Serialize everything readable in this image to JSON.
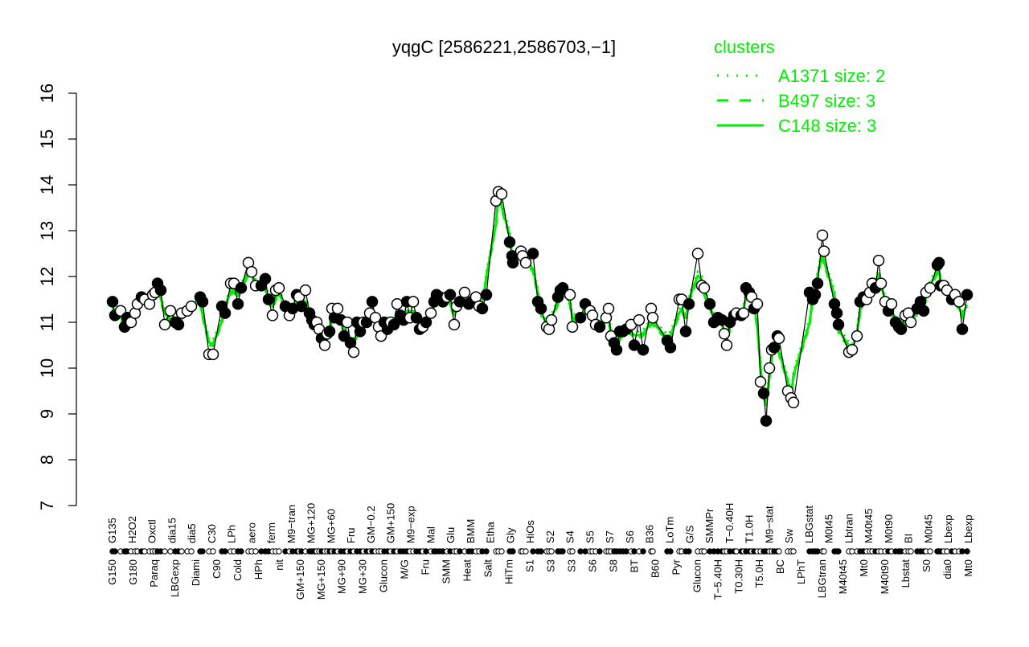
{
  "chart_data": {
    "type": "line",
    "title": "yqgC [2586221,2586703,−1]",
    "xlabel": "",
    "ylabel": "",
    "ylim": [
      7,
      16
    ],
    "yticks": [
      7,
      8,
      9,
      10,
      11,
      12,
      13,
      14,
      15,
      16
    ],
    "grid": false,
    "legend": {
      "title": "clusters",
      "position": "top-right",
      "color": "#00ee00",
      "entries": [
        {
          "label": "A1371 size: 2",
          "style": "dotted"
        },
        {
          "label": "B497 size: 3",
          "style": "dashed"
        },
        {
          "label": "C148 size: 3",
          "style": "solid"
        }
      ]
    },
    "x_labels_top": [
      "G135",
      "H2O2",
      "Oxctl",
      "dia15",
      "dia5",
      "C30",
      "LPh",
      "aero",
      "ferm",
      "M9−tran",
      "MG+120",
      "MG+60",
      "Fru",
      "GM−0.2",
      "GM+150",
      "M9−exp",
      "Mal",
      "Glu",
      "BMM",
      "Etha",
      "Gly",
      "HiOs",
      "S2",
      "S4",
      "S5",
      "S7",
      "S6",
      "B36",
      "LoTm",
      "G/S",
      "SMMPr",
      "T−0.40H",
      "T1.0H",
      "M9−stat",
      "Sw",
      "LBGstat",
      "M0t45",
      "Lbtran",
      "M40t45",
      "M0t90",
      "BI",
      "M0t45",
      "Lbexp",
      "Lbexp"
    ],
    "x_labels_bottom": [
      "G150",
      "G180",
      "Paraq",
      "LBGexp",
      "Diami",
      "C90",
      "Cold",
      "HPh",
      "nit",
      "GM+150",
      "MG+150",
      "MG+90",
      "MG+30",
      "Glucon",
      "M/G",
      "Fru",
      "SMM",
      "Heat",
      "Salt",
      "HiTm",
      "S1",
      "S3",
      "S3",
      "S6",
      "S8",
      "BT",
      "B60",
      "Pyr",
      "Glucon",
      "T−5.40H",
      "T0.30H",
      "T5.0H",
      "BC",
      "LPhT",
      "LBGtran",
      "M40t45",
      "Mt0",
      "M40t90",
      "Lbstat",
      "S0",
      "dia0",
      "Mt0"
    ],
    "series": [
      {
        "name": "samples",
        "style": "points+black-line",
        "points": [
          [
            140,
            11.45,
            1
          ],
          [
            143,
            11.15,
            1
          ],
          [
            150,
            11.25,
            0
          ],
          [
            155,
            10.9,
            1
          ],
          [
            158,
            11.1,
            1
          ],
          [
            163,
            11.0,
            0
          ],
          [
            168,
            11.2,
            0
          ],
          [
            171,
            11.4,
            0
          ],
          [
            176,
            11.55,
            1
          ],
          [
            180,
            11.5,
            0
          ],
          [
            186,
            11.4,
            0
          ],
          [
            190,
            11.6,
            0
          ],
          [
            193,
            11.65,
            0
          ],
          [
            196,
            11.85,
            1
          ],
          [
            200,
            11.7,
            1
          ],
          [
            205,
            10.95,
            0
          ],
          [
            212,
            11.25,
            0
          ],
          [
            218,
            11.0,
            1
          ],
          [
            222,
            10.95,
            1
          ],
          [
            226,
            11.2,
            0
          ],
          [
            233,
            11.25,
            0
          ],
          [
            238,
            11.35,
            0
          ],
          [
            249,
            11.55,
            1
          ],
          [
            252,
            11.45,
            1
          ],
          [
            260,
            10.3,
            0
          ],
          [
            265,
            10.3,
            0
          ],
          [
            276,
            11.35,
            1
          ],
          [
            280,
            11.2,
            1
          ],
          [
            287,
            11.85,
            0
          ],
          [
            291,
            11.85,
            0
          ],
          [
            296,
            11.4,
            1
          ],
          [
            300,
            11.75,
            1
          ],
          [
            309,
            12.3,
            0
          ],
          [
            313,
            12.1,
            0
          ],
          [
            318,
            11.8,
            0
          ],
          [
            325,
            11.8,
            1
          ],
          [
            330,
            11.95,
            1
          ],
          [
            334,
            11.5,
            1
          ],
          [
            339,
            11.15,
            0
          ],
          [
            343,
            11.7,
            0
          ],
          [
            347,
            11.75,
            0
          ],
          [
            355,
            11.35,
            1
          ],
          [
            360,
            11.15,
            0
          ],
          [
            364,
            11.3,
            1
          ],
          [
            369,
            11.6,
            1
          ],
          [
            372,
            11.55,
            0
          ],
          [
            375,
            11.35,
            1
          ],
          [
            380,
            11.7,
            0
          ],
          [
            385,
            11.2,
            1
          ],
          [
            388,
            11.05,
            1
          ],
          [
            391,
            10.95,
            1
          ],
          [
            394,
            11.0,
            0
          ],
          [
            397,
            10.85,
            0
          ],
          [
            400,
            10.65,
            1
          ],
          [
            404,
            10.5,
            0
          ],
          [
            407,
            10.75,
            0
          ],
          [
            410,
            10.8,
            1
          ],
          [
            413,
            11.3,
            0
          ],
          [
            416,
            11.1,
            1
          ],
          [
            420,
            11.3,
            0
          ],
          [
            424,
            11.05,
            1
          ],
          [
            428,
            10.7,
            1
          ],
          [
            432,
            11.0,
            0
          ],
          [
            436,
            10.55,
            1
          ],
          [
            440,
            10.35,
            0
          ],
          [
            444,
            11.0,
            1
          ],
          [
            448,
            10.8,
            1
          ],
          [
            452,
            11.0,
            0
          ],
          [
            456,
            11.0,
            1
          ],
          [
            460,
            11.2,
            0
          ],
          [
            463,
            11.45,
            1
          ],
          [
            467,
            11.1,
            0
          ],
          [
            471,
            10.9,
            0
          ],
          [
            474,
            10.7,
            0
          ],
          [
            478,
            11.0,
            1
          ],
          [
            482,
            10.85,
            1
          ],
          [
            486,
            11.0,
            0
          ],
          [
            490,
            10.95,
            1
          ],
          [
            494,
            11.4,
            0
          ],
          [
            498,
            11.15,
            1
          ],
          [
            502,
            11.05,
            1
          ],
          [
            506,
            11.45,
            1
          ],
          [
            510,
            11.1,
            0
          ],
          [
            514,
            11.45,
            0
          ],
          [
            518,
            11.1,
            1
          ],
          [
            522,
            10.85,
            1
          ],
          [
            526,
            10.9,
            0
          ],
          [
            530,
            11.0,
            1
          ],
          [
            536,
            11.2,
            0
          ],
          [
            540,
            11.45,
            1
          ],
          [
            543,
            11.6,
            1
          ],
          [
            547,
            11.55,
            1
          ],
          [
            551,
            11.45,
            1
          ],
          [
            556,
            11.55,
            0
          ],
          [
            560,
            11.6,
            1
          ],
          [
            565,
            10.95,
            0
          ],
          [
            568,
            11.35,
            0
          ],
          [
            572,
            11.45,
            1
          ],
          [
            578,
            11.65,
            0
          ],
          [
            583,
            11.4,
            1
          ],
          [
            587,
            11.45,
            1
          ],
          [
            592,
            11.55,
            0
          ],
          [
            596,
            11.35,
            0
          ],
          [
            600,
            11.3,
            1
          ],
          [
            605,
            11.6,
            1
          ],
          [
            617,
            13.65,
            0
          ],
          [
            620,
            13.85,
            0
          ],
          [
            624,
            13.8,
            0
          ],
          [
            634,
            12.75,
            1
          ],
          [
            637,
            12.45,
            1
          ],
          [
            638,
            12.3,
            1
          ],
          [
            648,
            12.55,
            0
          ],
          [
            650,
            12.45,
            0
          ],
          [
            654,
            12.3,
            0
          ],
          [
            663,
            12.5,
            1
          ],
          [
            669,
            11.45,
            1
          ],
          [
            673,
            11.3,
            1
          ],
          [
            680,
            10.9,
            0
          ],
          [
            683,
            10.85,
            0
          ],
          [
            686,
            11.05,
            0
          ],
          [
            694,
            11.55,
            1
          ],
          [
            697,
            11.7,
            1
          ],
          [
            700,
            11.75,
            1
          ],
          [
            709,
            11.6,
            0
          ],
          [
            712,
            10.9,
            0
          ],
          [
            722,
            11.1,
            1
          ],
          [
            728,
            11.4,
            1
          ],
          [
            734,
            11.25,
            0
          ],
          [
            737,
            11.15,
            0
          ],
          [
            741,
            10.95,
            0
          ],
          [
            746,
            10.9,
            1
          ],
          [
            754,
            11.1,
            0
          ],
          [
            757,
            11.3,
            0
          ],
          [
            760,
            10.7,
            0
          ],
          [
            764,
            10.55,
            1
          ],
          [
            767,
            10.4,
            1
          ],
          [
            771,
            10.8,
            1
          ],
          [
            775,
            10.8,
            1
          ],
          [
            779,
            10.85,
            1
          ],
          [
            785,
            10.95,
            0
          ],
          [
            789,
            10.5,
            1
          ],
          [
            795,
            11.05,
            0
          ],
          [
            800,
            10.4,
            1
          ],
          [
            810,
            11.3,
            0
          ],
          [
            812,
            11.1,
            0
          ],
          [
            830,
            10.6,
            1
          ],
          [
            834,
            10.45,
            1
          ],
          [
            845,
            11.5,
            0
          ],
          [
            848,
            11.5,
            0
          ],
          [
            853,
            10.8,
            1
          ],
          [
            857,
            11.4,
            1
          ],
          [
            868,
            12.5,
            0
          ],
          [
            873,
            11.8,
            0
          ],
          [
            876,
            11.75,
            0
          ],
          [
            883,
            11.4,
            1
          ],
          [
            888,
            11.0,
            1
          ],
          [
            893,
            11.1,
            1
          ],
          [
            898,
            11.05,
            1
          ],
          [
            901,
            10.75,
            0
          ],
          [
            904,
            10.5,
            0
          ],
          [
            908,
            11.0,
            1
          ],
          [
            913,
            11.15,
            1
          ],
          [
            916,
            11.2,
            0
          ],
          [
            922,
            11.15,
            1
          ],
          [
            925,
            11.2,
            0
          ],
          [
            928,
            11.75,
            1
          ],
          [
            932,
            11.65,
            1
          ],
          [
            935,
            11.55,
            0
          ],
          [
            938,
            11.3,
            1
          ],
          [
            942,
            11.4,
            0
          ],
          [
            946,
            9.7,
            0
          ],
          [
            950,
            9.45,
            1
          ],
          [
            953,
            8.85,
            1
          ],
          [
            957,
            10.0,
            0
          ],
          [
            960,
            10.4,
            0
          ],
          [
            963,
            10.45,
            1
          ],
          [
            967,
            10.7,
            1
          ],
          [
            969,
            10.65,
            0
          ],
          [
            980,
            9.5,
            0
          ],
          [
            984,
            9.35,
            0
          ],
          [
            987,
            9.25,
            0
          ],
          [
            1007,
            11.65,
            1
          ],
          [
            1011,
            11.5,
            1
          ],
          [
            1014,
            11.6,
            1
          ],
          [
            1017,
            11.85,
            1
          ],
          [
            1023,
            12.9,
            0
          ],
          [
            1025,
            12.55,
            0
          ],
          [
            1038,
            11.4,
            1
          ],
          [
            1041,
            11.2,
            1
          ],
          [
            1043,
            10.95,
            1
          ],
          [
            1056,
            10.35,
            0
          ],
          [
            1060,
            10.4,
            0
          ],
          [
            1066,
            10.7,
            0
          ],
          [
            1070,
            11.45,
            1
          ],
          [
            1074,
            11.55,
            1
          ],
          [
            1078,
            11.5,
            0
          ],
          [
            1082,
            11.65,
            0
          ],
          [
            1085,
            11.85,
            0
          ],
          [
            1089,
            11.75,
            1
          ],
          [
            1093,
            12.35,
            0
          ],
          [
            1096,
            11.85,
            0
          ],
          [
            1101,
            11.45,
            0
          ],
          [
            1105,
            11.25,
            1
          ],
          [
            1109,
            11.4,
            0
          ],
          [
            1114,
            11.0,
            1
          ],
          [
            1118,
            10.9,
            1
          ],
          [
            1121,
            10.85,
            1
          ],
          [
            1126,
            11.15,
            0
          ],
          [
            1130,
            11.2,
            0
          ],
          [
            1133,
            11.0,
            0
          ],
          [
            1141,
            11.3,
            1
          ],
          [
            1145,
            11.45,
            1
          ],
          [
            1149,
            11.25,
            1
          ],
          [
            1152,
            11.65,
            0
          ],
          [
            1157,
            11.75,
            0
          ],
          [
            1166,
            12.25,
            1
          ],
          [
            1168,
            12.3,
            1
          ],
          [
            1170,
            11.8,
            1
          ],
          [
            1174,
            11.8,
            0
          ],
          [
            1178,
            11.7,
            0
          ],
          [
            1184,
            11.5,
            1
          ],
          [
            1188,
            11.6,
            0
          ],
          [
            1193,
            11.45,
            0
          ],
          [
            1197,
            10.85,
            1
          ],
          [
            1203,
            11.6,
            1
          ]
        ]
      }
    ],
    "colors": {
      "cluster_line": "#00ee00",
      "points_line": "#000000",
      "axis": "#000000"
    }
  }
}
